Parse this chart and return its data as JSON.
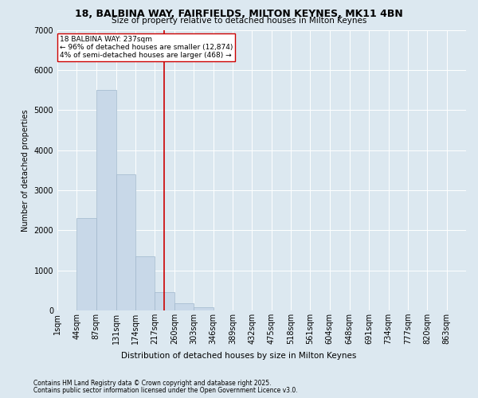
{
  "title_line1": "18, BALBINA WAY, FAIRFIELDS, MILTON KEYNES, MK11 4BN",
  "title_line2": "Size of property relative to detached houses in Milton Keynes",
  "xlabel": "Distribution of detached houses by size in Milton Keynes",
  "ylabel": "Number of detached properties",
  "annotation_title": "18 BALBINA WAY: 237sqm",
  "annotation_line1": "← 96% of detached houses are smaller (12,874)",
  "annotation_line2": "4% of semi-detached houses are larger (468) →",
  "property_size": 237,
  "footnote1": "Contains HM Land Registry data © Crown copyright and database right 2025.",
  "footnote2": "Contains public sector information licensed under the Open Government Licence v3.0.",
  "bar_color": "#c8d8e8",
  "bar_edge_color": "#a0b8cc",
  "vline_color": "#cc0000",
  "annotation_box_color": "#ffffff",
  "annotation_box_edge": "#cc0000",
  "background_color": "#dce8f0",
  "plot_bg_color": "#dce8f0",
  "bin_labels": [
    "1sqm",
    "44sqm",
    "87sqm",
    "131sqm",
    "174sqm",
    "217sqm",
    "260sqm",
    "303sqm",
    "346sqm",
    "389sqm",
    "432sqm",
    "475sqm",
    "518sqm",
    "561sqm",
    "604sqm",
    "648sqm",
    "691sqm",
    "734sqm",
    "777sqm",
    "820sqm",
    "863sqm"
  ],
  "bin_edges": [
    1,
    44,
    87,
    131,
    174,
    217,
    260,
    303,
    346,
    389,
    432,
    475,
    518,
    561,
    604,
    648,
    691,
    734,
    777,
    820,
    863,
    906
  ],
  "bar_heights": [
    0,
    2300,
    5500,
    3400,
    1350,
    450,
    180,
    75,
    0,
    0,
    0,
    0,
    0,
    0,
    0,
    0,
    0,
    0,
    0,
    0,
    0
  ],
  "ylim": [
    0,
    7000
  ],
  "yticks": [
    0,
    1000,
    2000,
    3000,
    4000,
    5000,
    6000,
    7000
  ],
  "title_fontsize": 9,
  "subtitle_fontsize": 7.5,
  "ylabel_fontsize": 7,
  "xlabel_fontsize": 7.5,
  "tick_fontsize": 7,
  "footnote_fontsize": 5.5,
  "ann_fontsize": 6.5
}
